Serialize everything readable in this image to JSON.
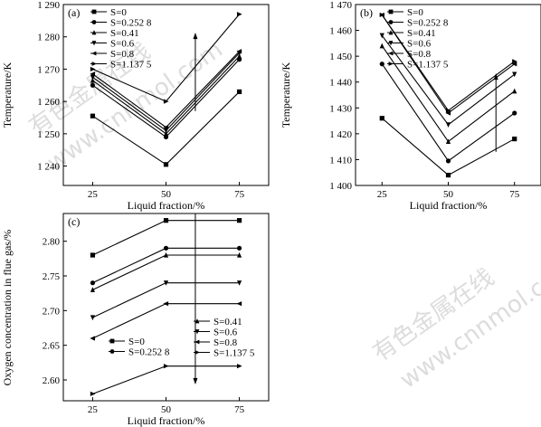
{
  "chart_data": [
    {
      "type": "line",
      "panel_label": "(a)",
      "xlabel": "Liquid fraction/%",
      "ylabel": "Temperature/K",
      "categories": [
        "25",
        "50",
        "75"
      ],
      "x": [
        25,
        50,
        75
      ],
      "xlim": [
        15,
        85
      ],
      "ylim": [
        1234,
        1290
      ],
      "yticks": [
        1240,
        1250,
        1260,
        1270,
        1280,
        1290
      ],
      "ytick_labels": [
        "1 240",
        "1 250",
        "1 260",
        "1 270",
        "1 280",
        "1 290"
      ],
      "legend_position": "top-right",
      "series": [
        {
          "name": "S=0",
          "marker": "square",
          "values": [
            1255.5,
            1240.5,
            1263
          ]
        },
        {
          "name": "S=0.252 8",
          "marker": "circle",
          "values": [
            1265,
            1249,
            1273
          ]
        },
        {
          "name": "S=0.41",
          "marker": "triangle-up",
          "values": [
            1266.5,
            1250,
            1274
          ]
        },
        {
          "name": "S=0.6",
          "marker": "triangle-down",
          "values": [
            1267.5,
            1251,
            1275
          ]
        },
        {
          "name": "S=0.8",
          "marker": "triangle-left",
          "values": [
            1268.5,
            1252,
            1275.5
          ]
        },
        {
          "name": "S=1.137 5",
          "marker": "triangle-right",
          "values": [
            1270,
            1260,
            1287
          ]
        }
      ],
      "arrow": {
        "x": 60,
        "y_from": 1257,
        "y_to": 1281,
        "direction": "up"
      }
    },
    {
      "type": "line",
      "panel_label": "(b)",
      "xlabel": "Liquid fraction/%",
      "ylabel": "Temperature/K",
      "categories": [
        "25",
        "50",
        "75"
      ],
      "x": [
        25,
        50,
        75
      ],
      "xlim": [
        15,
        85
      ],
      "ylim": [
        1400,
        1470
      ],
      "yticks": [
        1400,
        1410,
        1420,
        1430,
        1440,
        1450,
        1460,
        1470
      ],
      "ytick_labels": [
        "1 400",
        "1 410",
        "1 420",
        "1 430",
        "1 440",
        "1 450",
        "1 460",
        "1 470"
      ],
      "legend_position": "top-right",
      "series": [
        {
          "name": "S=0",
          "marker": "square",
          "values": [
            1426,
            1404,
            1418
          ]
        },
        {
          "name": "S=0.252 8",
          "marker": "circle",
          "values": [
            1447,
            1409.5,
            1428
          ]
        },
        {
          "name": "S=0.41",
          "marker": "triangle-up",
          "values": [
            1454,
            1417,
            1436.5
          ]
        },
        {
          "name": "S=0.6",
          "marker": "triangle-down",
          "values": [
            1458,
            1423.5,
            1443
          ]
        },
        {
          "name": "S=0.8",
          "marker": "triangle-left",
          "values": [
            1466,
            1428,
            1447
          ]
        },
        {
          "name": "S=1.137 5",
          "marker": "triangle-right",
          "values": [
            1466,
            1429,
            1448
          ]
        }
      ],
      "arrow": {
        "x": 68,
        "y_from": 1413,
        "y_to": 1443,
        "direction": "up"
      }
    },
    {
      "type": "line",
      "panel_label": "(c)",
      "xlabel": "Liquid fraction/%",
      "ylabel": "Oxygen concentration in flue gas/%",
      "categories": [
        "25",
        "50",
        "75"
      ],
      "x": [
        25,
        50,
        75
      ],
      "xlim": [
        15,
        85
      ],
      "ylim": [
        2.57,
        2.84
      ],
      "yticks": [
        2.6,
        2.65,
        2.7,
        2.75,
        2.8
      ],
      "ytick_labels": [
        "2.60",
        "2.65",
        "2.70",
        "2.75",
        "2.80"
      ],
      "legend_groups": [
        {
          "position": "right-middle",
          "names": [
            "S=0.41",
            "S=0.6",
            "S=0.8",
            "S=1.137 5"
          ]
        },
        {
          "position": "left-lower",
          "names": [
            "S=0",
            "S=0.252 8"
          ]
        }
      ],
      "series": [
        {
          "name": "S=0",
          "marker": "square",
          "values": [
            2.78,
            2.83,
            2.83
          ]
        },
        {
          "name": "S=0.252 8",
          "marker": "circle",
          "values": [
            2.74,
            2.79,
            2.79
          ]
        },
        {
          "name": "S=0.41",
          "marker": "triangle-up",
          "values": [
            2.73,
            2.78,
            2.78
          ]
        },
        {
          "name": "S=0.6",
          "marker": "triangle-down",
          "values": [
            2.69,
            2.74,
            2.74
          ]
        },
        {
          "name": "S=0.8",
          "marker": "triangle-left",
          "values": [
            2.66,
            2.71,
            2.71
          ]
        },
        {
          "name": "S=1.137 5",
          "marker": "triangle-right",
          "values": [
            2.58,
            2.62,
            2.62
          ]
        }
      ],
      "arrow": {
        "x": 60,
        "y_from": 2.84,
        "y_to": 2.595,
        "direction": "down"
      }
    }
  ],
  "watermarks": [
    "有色金属在线",
    "www.cnnmol.com"
  ]
}
